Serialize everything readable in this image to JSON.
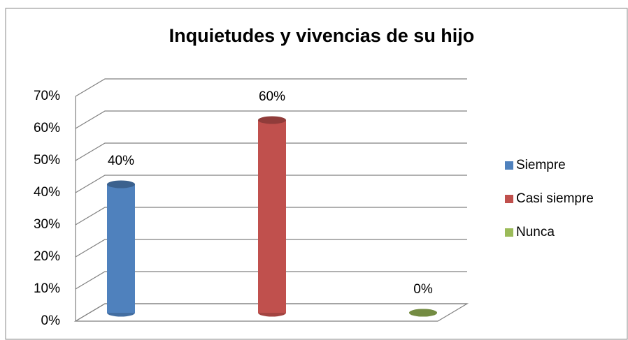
{
  "chart_data": {
    "type": "bar3d",
    "title": "Inquietudes y vivencias de su hijo",
    "categories": [
      "Siempre",
      "Casi siempre",
      "Nunca"
    ],
    "values": [
      40,
      60,
      0
    ],
    "value_labels": [
      "40%",
      "60%",
      "0%"
    ],
    "colors": [
      "#4f81bd",
      "#c0504d",
      "#9bbb59"
    ],
    "ylim": [
      0,
      70
    ],
    "yticks": [
      {
        "value": 0,
        "label": "0%"
      },
      {
        "value": 10,
        "label": "10%"
      },
      {
        "value": 20,
        "label": "20%"
      },
      {
        "value": 30,
        "label": "30%"
      },
      {
        "value": 40,
        "label": "40%"
      },
      {
        "value": 50,
        "label": "50%"
      },
      {
        "value": 60,
        "label": "60%"
      },
      {
        "value": 70,
        "label": "70%"
      }
    ],
    "grid": true,
    "legend": "right"
  }
}
